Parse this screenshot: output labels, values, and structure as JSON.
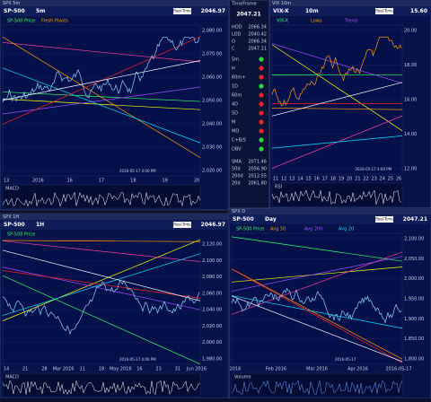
{
  "panels": [
    {
      "window": "SPX 5m",
      "symbol": "SP-500",
      "interval": "5m",
      "mode": "Real-Time",
      "price": "2046.97",
      "legend": [
        "SP-500 Price",
        "Fresh Pivots"
      ],
      "y_labels": [
        "2,080.00",
        "2,070.00",
        "2,060.00",
        "2,050.00",
        "2,040.00",
        "2,030.00",
        "2,020.00"
      ],
      "x_labels": [
        "13",
        "2016",
        "16",
        "17",
        "18",
        "19",
        "20"
      ],
      "date_label": "2016-05-17 4:00 PM",
      "indicator": "MACD"
    },
    {
      "window": "VIX 10m",
      "symbol": "VIX-X",
      "interval": "10m",
      "mode": "Real-Time",
      "price": "15.60",
      "legend": [
        "VIX-X",
        "Lows",
        "Trend"
      ],
      "y_labels": [
        "20.00",
        "18.00",
        "16.00",
        "14.00",
        "12.00"
      ],
      "x_labels": [
        "11",
        "12",
        "13",
        "14",
        "15",
        "16",
        "17",
        "18",
        "19",
        "20",
        "21",
        "22",
        "23",
        "24",
        "25",
        "26"
      ],
      "date_label": "2016-05-17 4:00 PM",
      "indicator": "RSI"
    },
    {
      "window": "SPX 1H",
      "symbol": "SP-500",
      "interval": "1H",
      "mode": "Real-Time",
      "price": "2046.97",
      "legend": [
        "SP-500 Price"
      ],
      "y_labels": [
        "2,120.00",
        "2,100.00",
        "2,080.00",
        "2,060.00",
        "2,040.00",
        "2,020.00",
        "2,000.00",
        "1,980.00"
      ],
      "x_labels": [
        "14",
        "21",
        "28",
        "Mar 2016",
        "11",
        "18",
        "May 2016",
        "16",
        "23",
        "31",
        "Jun 2016"
      ],
      "date_label": "2016-05-17 4:00 PM",
      "indicator": "MACD"
    },
    {
      "window": "SPX D",
      "symbol": "SP-500",
      "interval": "Day",
      "mode": "Real-Time",
      "price": "2047.21",
      "legend": [
        "SP-500 Price",
        "Avg 50",
        "Avg 200",
        "Avg 20"
      ],
      "y_labels": [
        "2,100.00",
        "2,050.00",
        "2,000.00",
        "1,950.00",
        "1,900.00",
        "1,850.00",
        "1,800.00"
      ],
      "x_labels": [
        "2016",
        "Feb 2016",
        "Mar 2016",
        "Apr 2016",
        "2016-05-17"
      ],
      "date_label": "2016-05-17",
      "indicator": "Volume"
    }
  ],
  "quote": {
    "title": "TimeFrame",
    "last": "2047.21",
    "rows": [
      [
        "HOD",
        "2066.34"
      ],
      [
        "LOD",
        "2040.42"
      ],
      [
        "O",
        "2066.34"
      ],
      [
        "C",
        "2047.21"
      ]
    ],
    "signals": [
      [
        "5m",
        "green"
      ],
      [
        "H",
        "red"
      ],
      [
        "60m+",
        "red"
      ],
      [
        "1D",
        "green"
      ],
      [
        "60m",
        "red"
      ],
      [
        "4D",
        "red"
      ],
      [
        "5D",
        "red"
      ],
      [
        "M",
        "red"
      ],
      [
        "MD",
        "red"
      ],
      [
        "C+B/S",
        "green"
      ],
      [
        "DBV",
        "green"
      ]
    ],
    "stats": [
      [
        "SMA",
        "2071.46"
      ],
      [
        "50d",
        "2056.90"
      ],
      [
        "200d",
        "2012.55"
      ],
      [
        "20d",
        "2061.80"
      ]
    ]
  }
}
